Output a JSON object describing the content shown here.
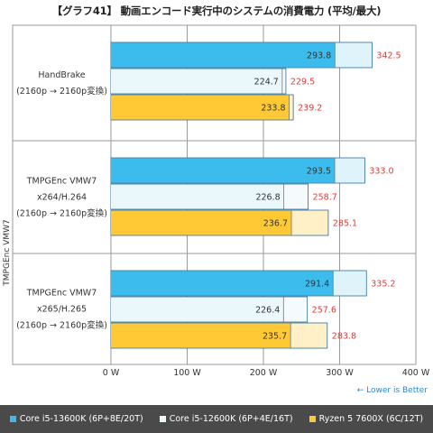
{
  "title": "【グラフ41】 動画エンコード実行中のシステムの消費電力 (平均/最大)",
  "y_axis_title": "TMPGEnc VMW7",
  "lower_is_better": "← Lower is Better",
  "colors": {
    "avg": [
      "#3bbcec",
      "#eaf7fb",
      "#ffc935"
    ],
    "max": [
      "#dff3fb",
      "#f5fbfd",
      "#fff0c8"
    ],
    "max_border": "#2a6e9a",
    "avg_label": "#333333",
    "max_label": "#e53935",
    "axis_label": "#333333",
    "grid": "#9a9a9a",
    "legend_bg": "#4a4a4a"
  },
  "chart_data": {
    "type": "bar",
    "orientation": "horizontal",
    "xlim": [
      0,
      400
    ],
    "x_ticks": [
      "0 W",
      "100 W",
      "200 W",
      "300 W",
      "400 W"
    ],
    "x_tick_values": [
      0,
      100,
      200,
      300,
      400
    ],
    "grid": true,
    "legend_position": "bottom",
    "groups": [
      {
        "label_lines": [
          "HandBrake",
          "(2160p → 2160p変換)"
        ]
      },
      {
        "label_lines": [
          "TMPGEnc VMW7",
          "x264/H.264",
          "(2160p → 2160p変換)"
        ]
      },
      {
        "label_lines": [
          "TMPGEnc VMW7",
          "x265/H.265",
          "(2160p → 2160p変換)"
        ]
      }
    ],
    "series": [
      {
        "name": "Core i5-13600K (6P+8E/20T)",
        "average": [
          293.8,
          293.5,
          291.4
        ],
        "max": [
          342.5,
          333.0,
          335.2
        ]
      },
      {
        "name": "Core i5-12600K (6P+4E/16T)",
        "average": [
          224.7,
          226.8,
          226.4
        ],
        "max": [
          229.5,
          258.7,
          257.6
        ]
      },
      {
        "name": "Ryzen 5 7600X (6C/12T)",
        "average": [
          233.8,
          236.7,
          235.7
        ],
        "max": [
          239.2,
          285.1,
          283.8
        ]
      }
    ]
  }
}
